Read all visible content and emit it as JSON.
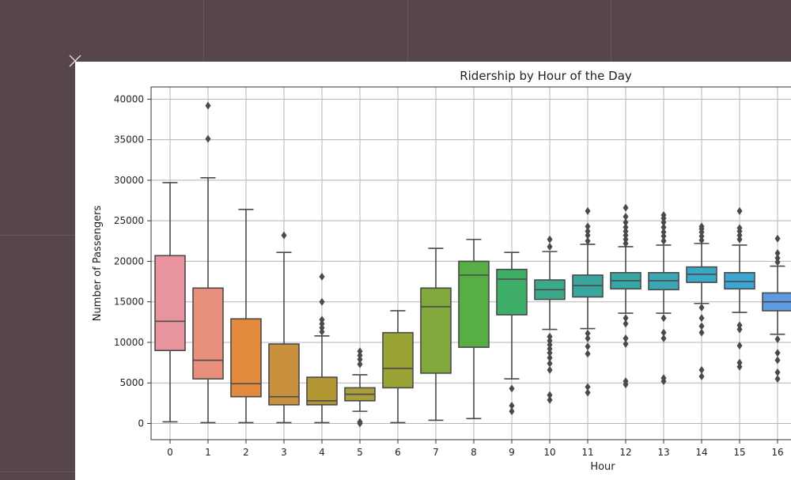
{
  "chart_data": {
    "type": "box",
    "title": "Ridership by Hour of the Day",
    "xlabel": "Hour",
    "ylabel": "Number of Passengers",
    "categories": [
      "0",
      "1",
      "2",
      "3",
      "4",
      "5",
      "6",
      "7",
      "8",
      "9",
      "10",
      "11",
      "12",
      "13",
      "14",
      "15",
      "16"
    ],
    "yticks": [
      0,
      5000,
      10000,
      15000,
      20000,
      25000,
      30000,
      35000,
      40000
    ],
    "ylim": [
      -2000,
      41500
    ],
    "grid": true,
    "colors": [
      "#e8949f",
      "#e8907d",
      "#e28b3e",
      "#c9913d",
      "#b29733",
      "#a79f3c",
      "#99a336",
      "#81a83b",
      "#56ae45",
      "#3eae68",
      "#3ba98a",
      "#3aa59c",
      "#38a6a5",
      "#3ba7b5",
      "#3aa8c5",
      "#3ea6d5",
      "#5d9be1"
    ],
    "boxes": [
      {
        "min": 200,
        "q1": 9000,
        "median": 12600,
        "q3": 20700,
        "max": 29700,
        "outliers": []
      },
      {
        "min": 100,
        "q1": 5500,
        "median": 7800,
        "q3": 16700,
        "max": 30300,
        "outliers": [
          35100,
          39200
        ]
      },
      {
        "min": 100,
        "q1": 3300,
        "median": 4900,
        "q3": 12900,
        "max": 26400,
        "outliers": []
      },
      {
        "min": 100,
        "q1": 2300,
        "median": 3300,
        "q3": 9800,
        "max": 21100,
        "outliers": [
          23200
        ]
      },
      {
        "min": 100,
        "q1": 2300,
        "median": 2800,
        "q3": 5700,
        "max": 10800,
        "outliers": [
          11300,
          11800,
          12300,
          12800,
          15000,
          18100
        ]
      },
      {
        "min": 1500,
        "q1": 2800,
        "median": 3600,
        "q3": 4400,
        "max": 6000,
        "outliers": [
          0,
          200,
          7300,
          7900,
          8400,
          8900
        ]
      },
      {
        "min": 100,
        "q1": 4400,
        "median": 6800,
        "q3": 11200,
        "max": 13900,
        "outliers": []
      },
      {
        "min": 400,
        "q1": 6200,
        "median": 14400,
        "q3": 16700,
        "max": 21600,
        "outliers": []
      },
      {
        "min": 600,
        "q1": 9400,
        "median": 18300,
        "q3": 20000,
        "max": 22700,
        "outliers": []
      },
      {
        "min": 5500,
        "q1": 13400,
        "median": 17800,
        "q3": 19000,
        "max": 21100,
        "outliers": [
          1500,
          2200,
          4300
        ]
      },
      {
        "min": 11600,
        "q1": 15300,
        "median": 16500,
        "q3": 17700,
        "max": 21200,
        "outliers": [
          2900,
          3500,
          6600,
          7400,
          8100,
          8700,
          9200,
          9700,
          10200,
          10700,
          21800,
          22700
        ]
      },
      {
        "min": 11700,
        "q1": 15600,
        "median": 17000,
        "q3": 18300,
        "max": 22100,
        "outliers": [
          3800,
          4500,
          8600,
          9500,
          10500,
          11100,
          22500,
          23200,
          23700,
          24300,
          26200
        ]
      },
      {
        "min": 13600,
        "q1": 16600,
        "median": 17600,
        "q3": 18600,
        "max": 21800,
        "outliers": [
          4800,
          5200,
          9800,
          10500,
          12300,
          13000,
          22200,
          22700,
          23200,
          23700,
          24200,
          24800,
          25500,
          26600
        ]
      },
      {
        "min": 13600,
        "q1": 16500,
        "median": 17600,
        "q3": 18600,
        "max": 22000,
        "outliers": [
          5200,
          5600,
          10500,
          11200,
          13000,
          22500,
          23100,
          23600,
          24200,
          24800,
          25300,
          25700
        ]
      },
      {
        "min": 14800,
        "q1": 17400,
        "median": 18400,
        "q3": 19300,
        "max": 22200,
        "outliers": [
          5800,
          6600,
          11200,
          12000,
          13000,
          14300,
          22600,
          23100,
          23600,
          24000,
          24300
        ]
      },
      {
        "min": 13700,
        "q1": 16600,
        "median": 17500,
        "q3": 18600,
        "max": 22000,
        "outliers": [
          7000,
          7500,
          9600,
          11600,
          12100,
          22700,
          23200,
          23700,
          24100,
          26200
        ]
      },
      {
        "min": 11000,
        "q1": 13900,
        "median": 15000,
        "q3": 16100,
        "max": 19400,
        "outliers": [
          5500,
          6300,
          7800,
          8700,
          10400,
          19900,
          20400,
          21000,
          22800
        ]
      }
    ]
  }
}
